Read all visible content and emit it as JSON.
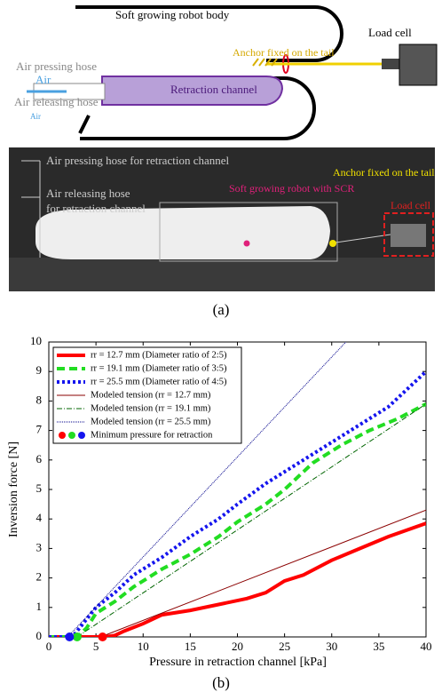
{
  "diagram": {
    "labels": [
      "Soft growing robot body",
      "Anchor fixed on the tail",
      "Load cell",
      "Air pressing hose",
      "Air",
      "Retraction channel",
      "Air releasing hose",
      "Air"
    ]
  },
  "photo": {
    "labels": [
      "Air pressing hose for retraction channel",
      "Air releasing hose",
      "for retraction channel",
      "Soft growing robot with SCR",
      "Anchor fixed on the tail",
      "Load cell"
    ]
  },
  "captions": [
    "(a)",
    "(b)"
  ],
  "chart_data": {
    "type": "line",
    "x_label": "Pressure in retraction channel [kPa]",
    "y_label": "Inversion force [N]",
    "xlim": [
      0,
      40
    ],
    "ylim": [
      0,
      10
    ],
    "xticks": [
      0,
      5,
      10,
      15,
      20,
      25,
      30,
      35,
      40
    ],
    "yticks": [
      0,
      1,
      2,
      3,
      4,
      5,
      6,
      7,
      8,
      9,
      10
    ],
    "series": [
      {
        "name": "rr = 12.7 mm (Diameter ratio of 2:5)",
        "color": "#ff0000",
        "width": 4,
        "dash": "none",
        "x": [
          0,
          6,
          7,
          8,
          10,
          12,
          15,
          18,
          21,
          23,
          25,
          27,
          30,
          33,
          36,
          40
        ],
        "values": [
          0,
          0,
          0.05,
          0.2,
          0.45,
          0.75,
          0.9,
          1.1,
          1.3,
          1.5,
          1.9,
          2.1,
          2.6,
          3.0,
          3.4,
          3.85
        ]
      },
      {
        "name": "rr = 19.1 mm (Diameter ratio of 3:5)",
        "color": "#22dd22",
        "width": 4,
        "dash": "9 5",
        "x": [
          0,
          3,
          4,
          5,
          7,
          9,
          12,
          15,
          18,
          20,
          23,
          25,
          28,
          31,
          34,
          37,
          40
        ],
        "values": [
          0,
          0,
          0.3,
          0.8,
          1.2,
          1.7,
          2.3,
          2.8,
          3.4,
          3.9,
          4.5,
          5.0,
          5.9,
          6.5,
          7.0,
          7.4,
          7.9
        ]
      },
      {
        "name": "rr = 25.5 mm (Diameter ratio of 4:5)",
        "color": "#1515ee",
        "width": 4,
        "dash": "3 3",
        "x": [
          0,
          2.5,
          3.5,
          5,
          7,
          9,
          12,
          15,
          18,
          20,
          23,
          26,
          30,
          33,
          36,
          40
        ],
        "values": [
          0,
          0,
          0.4,
          1.0,
          1.5,
          2.1,
          2.7,
          3.4,
          4.0,
          4.5,
          5.2,
          5.8,
          6.6,
          7.2,
          7.8,
          9.0
        ]
      },
      {
        "name": "Modeled tension (rr = 12.7 mm)",
        "color": "#8b0000",
        "width": 1,
        "dash": "none",
        "x": [
          5.5,
          40
        ],
        "values": [
          0,
          4.3
        ]
      },
      {
        "name": "Modeled tension (rr = 19.1 mm)",
        "color": "#006400",
        "width": 1,
        "dash": "6 2 1 2",
        "x": [
          3,
          40
        ],
        "values": [
          0,
          7.9
        ]
      },
      {
        "name": "Modeled tension (rr = 25.5 mm)",
        "color": "#00008b",
        "width": 1,
        "dash": "1 1",
        "x": [
          2,
          31.5
        ],
        "values": [
          0,
          10
        ]
      },
      {
        "name": "Minimum pressure for retraction",
        "kind": "scatter",
        "colors": [
          "#ff0000",
          "#22dd22",
          "#1515ee"
        ],
        "x": [
          5.7,
          3.0,
          2.2
        ],
        "values": [
          0,
          0,
          0
        ]
      }
    ]
  }
}
